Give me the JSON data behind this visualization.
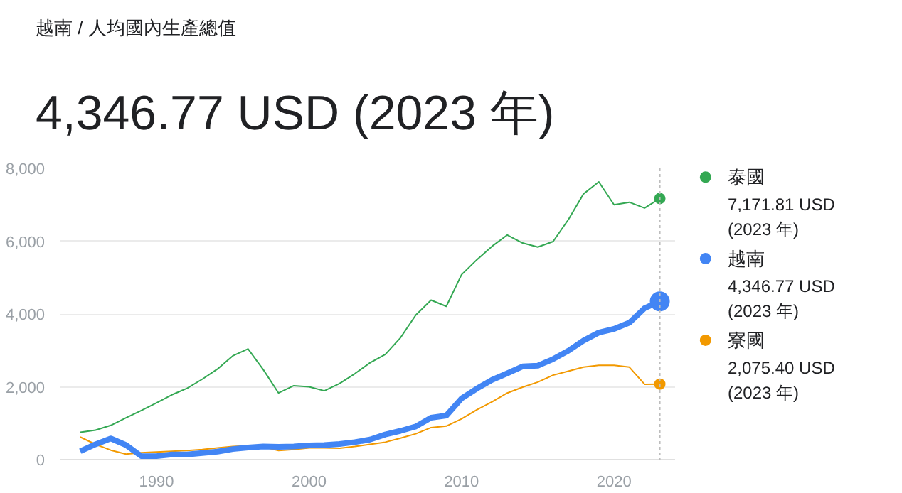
{
  "chart_data": {
    "type": "line",
    "subtitle": "越南 / 人均國內生產總值",
    "title": "4,346.77 USD (2023 年)",
    "x": [
      1985,
      1986,
      1987,
      1988,
      1989,
      1990,
      1991,
      1992,
      1993,
      1994,
      1995,
      1996,
      1997,
      1998,
      1999,
      2000,
      2001,
      2002,
      2003,
      2004,
      2005,
      2006,
      2007,
      2008,
      2009,
      2010,
      2011,
      2012,
      2013,
      2014,
      2015,
      2016,
      2017,
      2018,
      2019,
      2020,
      2021,
      2022,
      2023
    ],
    "series": [
      {
        "name": "泰國",
        "color": "#34a853",
        "values": [
          750,
          810,
          940,
          1150,
          1350,
          1560,
          1780,
          1960,
          2210,
          2490,
          2850,
          3040,
          2470,
          1830,
          2030,
          2000,
          1890,
          2090,
          2360,
          2660,
          2890,
          3350,
          3970,
          4380,
          4210,
          5080,
          5490,
          5860,
          6170,
          5950,
          5840,
          5990,
          6590,
          7300,
          7630,
          7000,
          7070,
          6910,
          7171.81
        ]
      },
      {
        "name": "越南",
        "color": "#4285f4",
        "values": [
          230,
          420,
          580,
          400,
          95,
          95,
          140,
          140,
          180,
          220,
          290,
          330,
          360,
          350,
          360,
          390,
          400,
          430,
          480,
          550,
          690,
          790,
          910,
          1150,
          1210,
          1680,
          1950,
          2190,
          2370,
          2560,
          2580,
          2760,
          2990,
          3270,
          3490,
          3590,
          3760,
          4160,
          4346.77
        ]
      },
      {
        "name": "寮國",
        "color": "#f29900",
        "values": [
          620,
          420,
          260,
          150,
          190,
          210,
          230,
          250,
          280,
          320,
          360,
          380,
          350,
          250,
          280,
          320,
          320,
          310,
          360,
          420,
          480,
          590,
          710,
          880,
          920,
          1120,
          1370,
          1590,
          1830,
          1990,
          2130,
          2320,
          2430,
          2540,
          2590,
          2590,
          2540,
          2070,
          2075.4
        ]
      }
    ],
    "annotations": [
      "7,171.81 USD\n(2023 年)",
      "4,346.77 USD\n(2023 年)",
      "2,075.40 USD\n(2023 年)"
    ],
    "xlim": [
      1983.7,
      2024
    ],
    "ylim": [
      0,
      8000
    ],
    "xticks": [
      1990,
      2000,
      2010,
      2020
    ],
    "yticks": [
      0,
      {
        "value": 2000,
        "label": "2,000"
      },
      {
        "value": 4000,
        "label": "4,000"
      },
      {
        "value": 6000,
        "label": "6,000"
      },
      {
        "value": 8000,
        "label": "8,000"
      }
    ],
    "grid": "y",
    "legend": "right",
    "ref_lines": [
      {
        "axis": "x",
        "value": 2023,
        "color": "#bdbdbd",
        "line_style": "dotted"
      }
    ]
  }
}
